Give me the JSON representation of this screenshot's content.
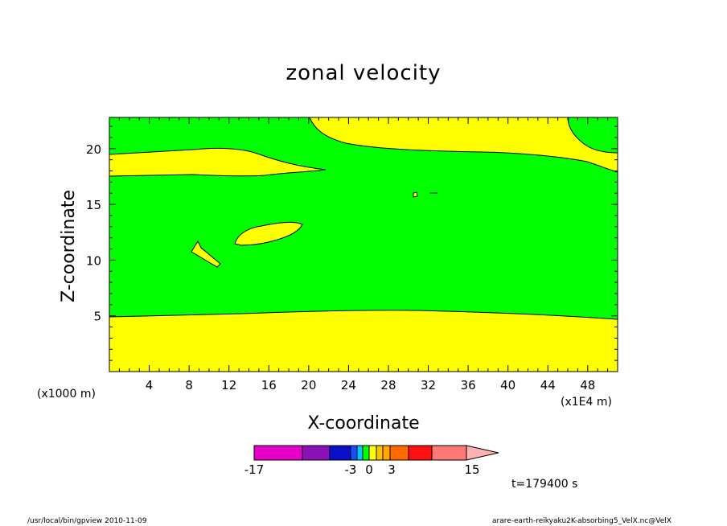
{
  "chart_data": {
    "type": "contour",
    "title": "zonal velocity",
    "xlabel": "X-coordinate",
    "ylabel": "Z-coordinate",
    "x_unit_label": "(x1000 m)",
    "x_scale_label": "(x1E4 m)",
    "x_ticks": [
      4,
      8,
      12,
      16,
      20,
      24,
      28,
      32,
      36,
      40,
      44,
      48
    ],
    "y_ticks": [
      5,
      10,
      15,
      20
    ],
    "xlim": [
      0,
      51
    ],
    "ylim": [
      0,
      22.8
    ],
    "fill_colors": {
      "background_level": "#00ff00",
      "positive_level": "#ffff00"
    },
    "colorbar": {
      "colors": [
        "#e600c8",
        "#8a10b8",
        "#0a10c8",
        "#1450ff",
        "#00c8ff",
        "#00ff00",
        "#ffff00",
        "#ffc000",
        "#ffa800",
        "#ff6a00",
        "#ff1010",
        "#ff7878",
        "#ffb0b0"
      ],
      "widths": [
        60,
        34,
        26,
        8,
        7,
        8,
        9,
        8,
        9,
        23,
        29,
        43,
        40
      ],
      "tick_labels": [
        {
          "text": "-17",
          "at": 0
        },
        {
          "text": "-3",
          "at": 120
        },
        {
          "text": "0",
          "at": 143
        },
        {
          "text": "3",
          "at": 171
        },
        {
          "text": "15",
          "at": 271
        }
      ]
    },
    "time_label": "t=179400 s"
  },
  "footer": {
    "left": "/usr/local/bin/gpview   2010-11-09",
    "right": "arare-earth-reikyaku2K-absorbing5_VelX.nc@VelX"
  }
}
